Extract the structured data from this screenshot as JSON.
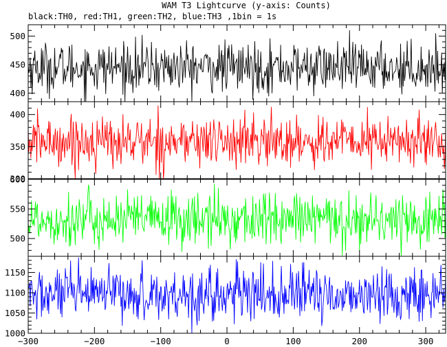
{
  "chart_data": {
    "type": "line",
    "title": "WAM T3 Lightcurve (y-axis: Counts)",
    "subtitle": "black:TH0, red:TH1, green:TH2, blue:TH3 ,1bin = 1s",
    "xlabel": "",
    "ylabel": "",
    "xlim": [
      -300,
      330
    ],
    "xticks": [
      -300,
      -200,
      -100,
      0,
      100,
      200,
      300
    ],
    "xtick_labels": [
      "−300",
      "−200",
      "−100",
      "0",
      "100",
      "200",
      "300"
    ],
    "bin_seconds": 1,
    "panels": [
      {
        "name": "TH0",
        "color": "#000000",
        "ylim": [
          385,
          520
        ],
        "yticks": [
          400,
          450,
          500
        ],
        "ytick_labels": [
          "400",
          "450",
          "500"
        ],
        "mean": 445,
        "sigma": 22,
        "min": 385,
        "max": 520
      },
      {
        "name": "TH1",
        "color": "#ff0000",
        "ylim": [
          300,
          420
        ],
        "yticks": [
          300,
          350,
          400
        ],
        "ytick_labels": [
          "300",
          "350",
          "400"
        ],
        "mean": 358,
        "sigma": 20,
        "min": 300,
        "max": 420
      },
      {
        "name": "TH2",
        "color": "#00ff00",
        "ylim": [
          470,
          600
        ],
        "yticks": [
          500,
          550,
          600
        ],
        "ytick_labels": [
          "500",
          "550",
          "600"
        ],
        "mean": 532,
        "sigma": 23,
        "min": 470,
        "max": 600
      },
      {
        "name": "TH3",
        "color": "#0000ff",
        "ylim": [
          1000,
          1190
        ],
        "yticks": [
          1000,
          1050,
          1100,
          1150
        ],
        "ytick_labels": [
          "1000",
          "1050",
          "1100",
          "1150"
        ],
        "mean": 1095,
        "sigma": 33,
        "min": 1000,
        "max": 1190
      }
    ]
  }
}
